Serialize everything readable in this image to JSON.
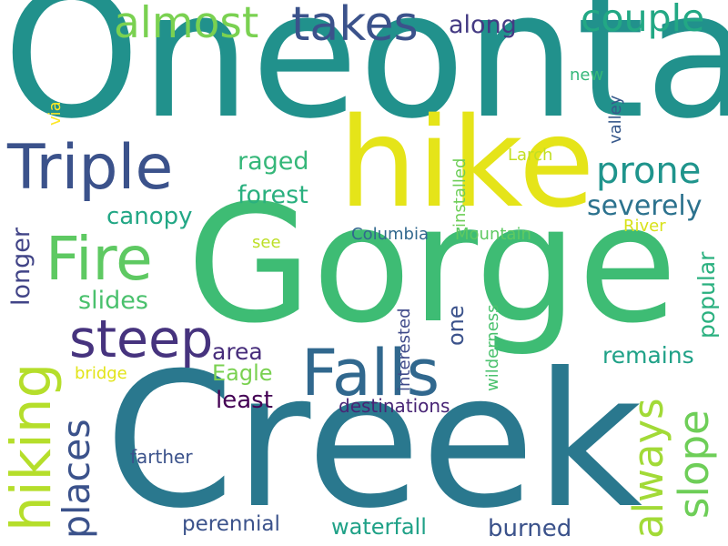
{
  "words": [
    {
      "text": "Oneonta",
      "color": "#21918c"
    },
    {
      "text": "Gorge",
      "color": "#3ebc74"
    },
    {
      "text": "Creek",
      "color": "#2a788e"
    },
    {
      "text": "hike",
      "color": "#e5e419"
    },
    {
      "text": "Triple",
      "color": "#3b528b"
    },
    {
      "text": "Falls",
      "color": "#31688e"
    },
    {
      "text": "hiking",
      "color": "#b5de2b"
    },
    {
      "text": "Fire",
      "color": "#5ec962"
    },
    {
      "text": "steep",
      "color": "#46337e"
    },
    {
      "text": "takes",
      "color": "#3b528b"
    },
    {
      "text": "almost",
      "color": "#7ad151"
    },
    {
      "text": "couple",
      "color": "#22a884"
    },
    {
      "text": "prone",
      "color": "#1f948c"
    },
    {
      "text": "slope",
      "color": "#6ece58"
    },
    {
      "text": "always",
      "color": "#a2da37"
    },
    {
      "text": "places",
      "color": "#3b528b"
    },
    {
      "text": "severely",
      "color": "#2c728e"
    },
    {
      "text": "raged",
      "color": "#35b779"
    },
    {
      "text": "forest",
      "color": "#2ab07f"
    },
    {
      "text": "canopy",
      "color": "#22a785"
    },
    {
      "text": "along",
      "color": "#443a83"
    },
    {
      "text": "longer",
      "color": "#414487"
    },
    {
      "text": "slides",
      "color": "#4ac16d"
    },
    {
      "text": "area",
      "color": "#472d7b"
    },
    {
      "text": "Eagle",
      "color": "#7ad151"
    },
    {
      "text": "least",
      "color": "#440154"
    },
    {
      "text": "remains",
      "color": "#1fa187"
    },
    {
      "text": "popular",
      "color": "#2ab07f"
    },
    {
      "text": "one",
      "color": "#3b528b"
    },
    {
      "text": "Columbia",
      "color": "#31688e"
    },
    {
      "text": "Mountain",
      "color": "#5ec962"
    },
    {
      "text": "installed",
      "color": "#6ece58"
    },
    {
      "text": "valley",
      "color": "#38598c"
    },
    {
      "text": "River",
      "color": "#d8e219"
    },
    {
      "text": "Larch",
      "color": "#c2df23"
    },
    {
      "text": "new",
      "color": "#35b779"
    },
    {
      "text": "via",
      "color": "#fde725"
    },
    {
      "text": "see",
      "color": "#bddf26"
    },
    {
      "text": "bridge",
      "color": "#e2e418"
    },
    {
      "text": "interested",
      "color": "#3e4989"
    },
    {
      "text": "wilderness",
      "color": "#4ac16d"
    },
    {
      "text": "destinations",
      "color": "#482475"
    },
    {
      "text": "farther",
      "color": "#3b528b"
    },
    {
      "text": "perennial",
      "color": "#3b528b"
    },
    {
      "text": "waterfall",
      "color": "#1fa187"
    },
    {
      "text": "burned",
      "color": "#3b528b"
    }
  ]
}
